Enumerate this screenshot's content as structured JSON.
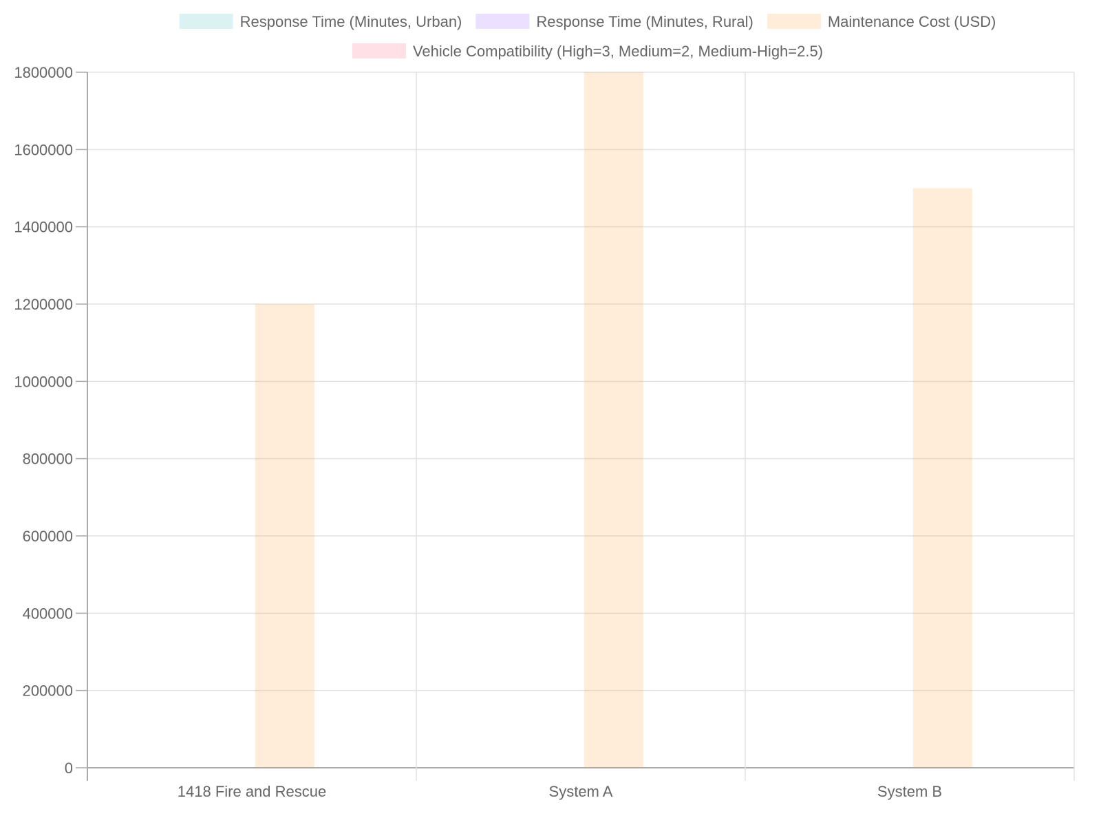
{
  "chart_data": {
    "type": "bar",
    "title": "",
    "xlabel": "",
    "ylabel": "",
    "categories": [
      "1418 Fire and Rescue",
      "System A",
      "System B"
    ],
    "ylim": [
      0,
      1800000
    ],
    "yticks": [
      0,
      200000,
      400000,
      600000,
      800000,
      1000000,
      1200000,
      1400000,
      1600000,
      1800000
    ],
    "grid": true,
    "legend_position": "top",
    "series": [
      {
        "name": "Response Time (Minutes, Urban)",
        "color": "rgba(75,192,192,0.2)",
        "values": [
          null,
          null,
          null
        ]
      },
      {
        "name": "Response Time (Minutes, Rural)",
        "color": "rgba(153,102,255,0.2)",
        "values": [
          null,
          null,
          null
        ]
      },
      {
        "name": "Maintenance Cost (USD)",
        "color": "rgba(255,159,64,0.2)",
        "values": [
          1200000,
          1800000,
          1500000
        ]
      },
      {
        "name": "Vehicle Compatibility (High=3, Medium=2, Medium-High=2.5)",
        "color": "rgba(255,99,132,0.2)",
        "values": [
          null,
          null,
          null
        ]
      }
    ]
  }
}
